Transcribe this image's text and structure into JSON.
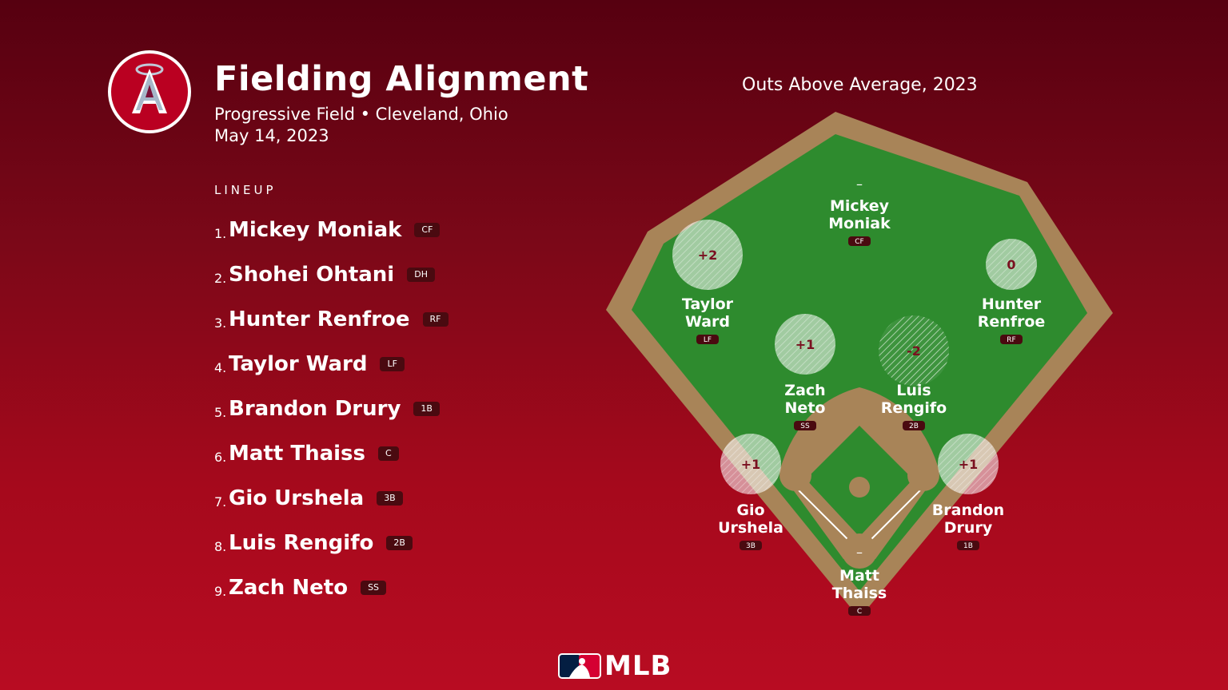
{
  "header": {
    "title": "Fielding Alignment",
    "venue": "Progressive Field • Cleveland, Ohio",
    "date": "May 14, 2023"
  },
  "lineup": {
    "heading": "LINEUP",
    "items": [
      {
        "num": "1.",
        "name": "Mickey Moniak",
        "pos": "CF"
      },
      {
        "num": "2.",
        "name": "Shohei Ohtani",
        "pos": "DH"
      },
      {
        "num": "3.",
        "name": "Hunter Renfroe",
        "pos": "RF"
      },
      {
        "num": "4.",
        "name": "Taylor Ward",
        "pos": "LF"
      },
      {
        "num": "5.",
        "name": "Brandon Drury",
        "pos": "1B"
      },
      {
        "num": "6.",
        "name": "Matt Thaiss",
        "pos": "C"
      },
      {
        "num": "7.",
        "name": "Gio Urshela",
        "pos": "3B"
      },
      {
        "num": "8.",
        "name": "Luis Rengifo",
        "pos": "2B"
      },
      {
        "num": "9.",
        "name": "Zach Neto",
        "pos": "SS"
      }
    ]
  },
  "field": {
    "title": "Outs Above Average, 2023",
    "players": [
      {
        "line1": "Mickey",
        "line2": "Moniak",
        "pos": "CF",
        "oaa": "–",
        "oaa_value": null
      },
      {
        "line1": "Taylor",
        "line2": "Ward",
        "pos": "LF",
        "oaa": "+2",
        "oaa_value": 2
      },
      {
        "line1": "Hunter",
        "line2": "Renfroe",
        "pos": "RF",
        "oaa": "0",
        "oaa_value": 0
      },
      {
        "line1": "Zach",
        "line2": "Neto",
        "pos": "SS",
        "oaa": "+1",
        "oaa_value": 1
      },
      {
        "line1": "Luis",
        "line2": "Rengifo",
        "pos": "2B",
        "oaa": "-2",
        "oaa_value": -2
      },
      {
        "line1": "Gio",
        "line2": "Urshela",
        "pos": "3B",
        "oaa": "+1",
        "oaa_value": 1
      },
      {
        "line1": "Brandon",
        "line2": "Drury",
        "pos": "1B",
        "oaa": "+1",
        "oaa_value": 1
      },
      {
        "line1": "Matt",
        "line2": "Thaiss",
        "pos": "C",
        "oaa": "–",
        "oaa_value": null
      }
    ]
  },
  "footer": {
    "brand": "MLB"
  },
  "colors": {
    "background_top": "#560010",
    "background_bottom": "#b80c22",
    "grass": "#2e8b2e",
    "dirt": "#a88458",
    "angels_red": "#ba0021"
  },
  "icons": {
    "team_logo": "angels-logo-icon",
    "league_logo": "mlb-logo-icon"
  }
}
